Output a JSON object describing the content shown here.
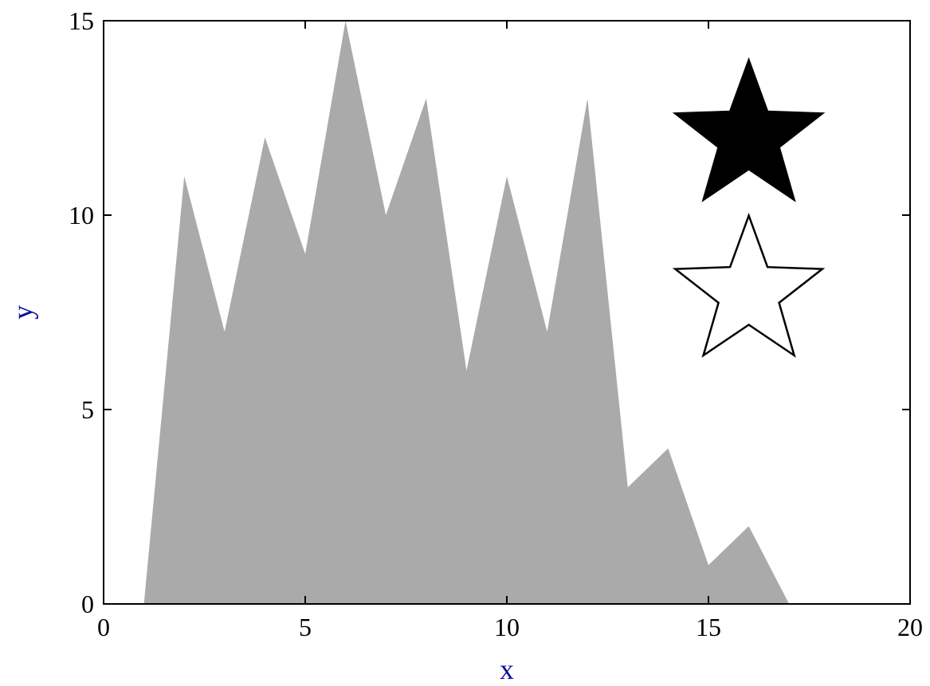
{
  "chart_data": {
    "type": "area",
    "title": "",
    "xlabel": "x",
    "ylabel": "y",
    "xlim": [
      0,
      20
    ],
    "ylim": [
      0,
      15
    ],
    "xticks": [
      0,
      5,
      10,
      15,
      20
    ],
    "yticks": [
      0,
      5,
      10,
      15
    ],
    "x_tick_labels": [
      "0",
      "5",
      "10",
      "15",
      "20"
    ],
    "y_tick_labels": [
      "0",
      "5",
      "10",
      "15"
    ],
    "grid": false,
    "series": [
      {
        "x": [
          1,
          2,
          3,
          4,
          5,
          6,
          7,
          8,
          9,
          10,
          11,
          12,
          13,
          14,
          15,
          16,
          17
        ],
        "values": [
          0,
          11,
          7,
          12,
          9,
          15,
          10,
          13,
          6,
          11,
          7,
          13,
          3,
          4,
          1,
          2,
          0
        ],
        "color": "#aaaaaa"
      }
    ],
    "markers": [
      {
        "shape": "star",
        "filled": true,
        "x": 16,
        "y": 12,
        "color": "#000000"
      },
      {
        "shape": "star",
        "filled": false,
        "x": 16,
        "y": 8,
        "color": "#000000"
      }
    ],
    "axis_label_color": "#1010a0",
    "tick_label_color": "#000000"
  }
}
